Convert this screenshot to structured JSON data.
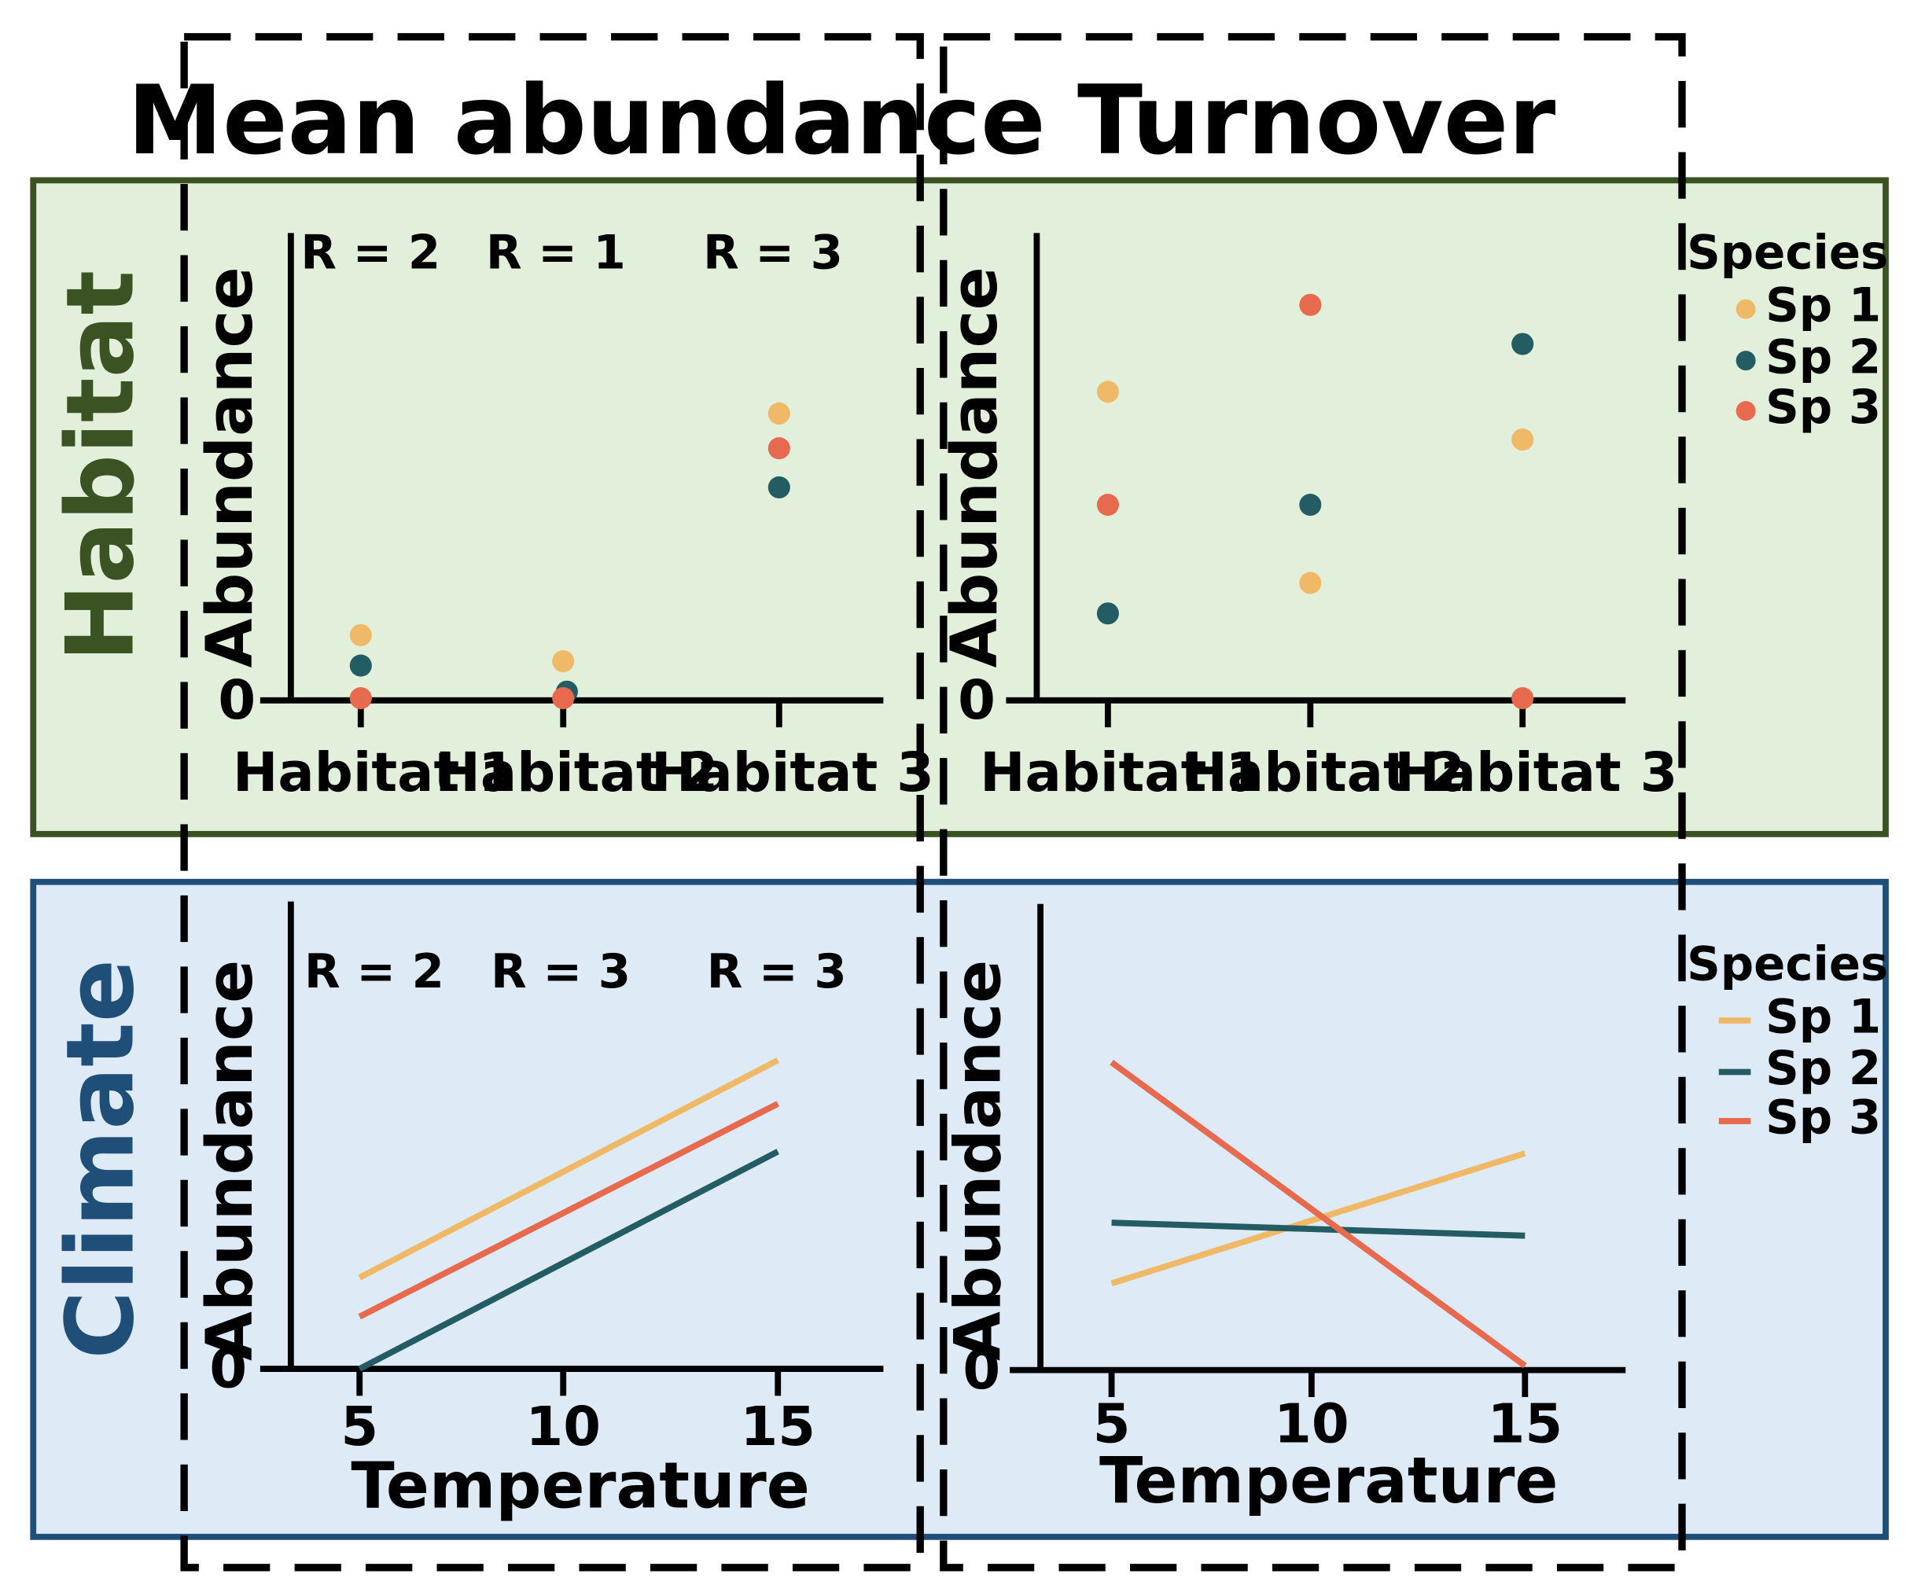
{
  "column_titles": {
    "left": "Mean abundance",
    "right": "Turnover"
  },
  "row_labels": {
    "top": "Habitat",
    "bottom": "Climate"
  },
  "colors": {
    "habitat_bg": "#e2efda",
    "habitat_border": "#3b5323",
    "climate_bg": "#deebf7",
    "climate_border": "#1f4e79",
    "sp1": "#f0b967",
    "sp2": "#235d63",
    "sp3": "#e7694e"
  },
  "legend": {
    "title": "Species",
    "items": [
      "Sp 1",
      "Sp 2",
      "Sp 3"
    ]
  },
  "chart_data": [
    {
      "id": "habitat-mean",
      "type": "scatter",
      "ylabel": "Abundance",
      "zero_label": "0",
      "categories": [
        "Habitat 1",
        "Habitat 2",
        "Habitat 3"
      ],
      "ylim": [
        0,
        10
      ],
      "r_labels": [
        "R = 2",
        "R = 1",
        "R = 3"
      ],
      "series": [
        {
          "name": "Sp 1",
          "values": [
            1.5,
            0.9,
            6.6
          ]
        },
        {
          "name": "Sp 2",
          "values": [
            0.8,
            0.2,
            4.9
          ]
        },
        {
          "name": "Sp 3",
          "values": [
            0.05,
            0.05,
            5.8
          ]
        }
      ]
    },
    {
      "id": "habitat-turnover",
      "type": "scatter",
      "ylabel": "Abundance",
      "zero_label": "0",
      "categories": [
        "Habitat 1",
        "Habitat 2",
        "Habitat 3"
      ],
      "ylim": [
        0,
        10
      ],
      "series": [
        {
          "name": "Sp 1",
          "values": [
            7.1,
            2.7,
            6.0
          ]
        },
        {
          "name": "Sp 2",
          "values": [
            2.0,
            4.5,
            8.2
          ]
        },
        {
          "name": "Sp 3",
          "values": [
            4.5,
            9.1,
            0.05
          ]
        }
      ]
    },
    {
      "id": "climate-mean",
      "type": "line",
      "ylabel": "Abundance",
      "xlabel": "Temperature",
      "zero_label": "0",
      "xticks": [
        "5",
        "10",
        "15"
      ],
      "x": [
        5,
        15
      ],
      "xlim": [
        3.3,
        17.5
      ],
      "ylim": [
        0,
        10
      ],
      "r_labels": [
        "R = 2",
        "R = 3",
        "R = 3"
      ],
      "series": [
        {
          "name": "Sp 1",
          "values": [
            2.1,
            7.1
          ]
        },
        {
          "name": "Sp 2",
          "values": [
            0.0,
            5.0
          ]
        },
        {
          "name": "Sp 3",
          "values": [
            1.2,
            6.1
          ]
        }
      ]
    },
    {
      "id": "climate-turnover",
      "type": "line",
      "ylabel": "Abundance",
      "xlabel": "Temperature",
      "zero_label": "0",
      "xticks": [
        "5",
        "10",
        "15"
      ],
      "x": [
        5,
        15
      ],
      "xlim": [
        3.3,
        17.5
      ],
      "ylim": [
        0,
        10
      ],
      "series": [
        {
          "name": "Sp 1",
          "values": [
            2.0,
            5.0
          ]
        },
        {
          "name": "Sp 2",
          "values": [
            3.4,
            3.1
          ]
        },
        {
          "name": "Sp 3",
          "values": [
            7.1,
            0.1
          ]
        }
      ]
    }
  ]
}
